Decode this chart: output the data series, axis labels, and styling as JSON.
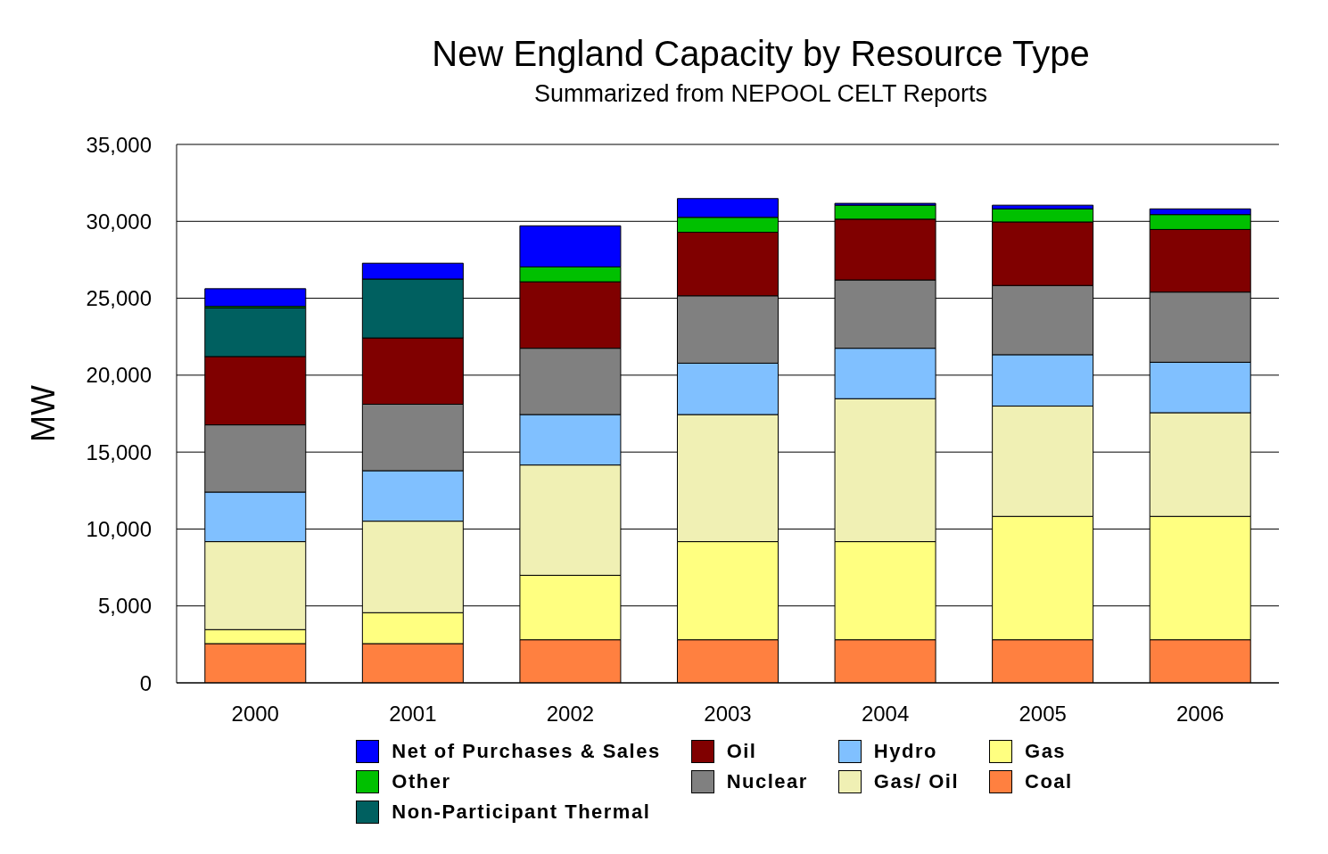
{
  "chart_data": {
    "type": "bar",
    "title": "New England Capacity by Resource Type",
    "subtitle": "Summarized from NEPOOL CELT Reports",
    "ylabel": "MW",
    "categories": [
      "2000",
      "2001",
      "2002",
      "2003",
      "2004",
      "2005",
      "2006"
    ],
    "stacked": true,
    "ylim": [
      0,
      35000
    ],
    "yticks": [
      0,
      {
        "value": 5000,
        "label": "5,000"
      },
      {
        "value": 10000,
        "label": "10,000"
      },
      {
        "value": 15000,
        "label": "15,000"
      },
      {
        "value": 20000,
        "label": "20,000"
      },
      {
        "value": 25000,
        "label": "25,000"
      },
      {
        "value": 30000,
        "label": "30,000"
      },
      {
        "value": 35000,
        "label": "35,000"
      }
    ],
    "grid": "y",
    "legend": "bottom",
    "series": [
      {
        "name": "Coal",
        "color": "#ff8040",
        "values": [
          2550,
          2550,
          2800,
          2800,
          2800,
          2800,
          2800
        ]
      },
      {
        "name": "Gas",
        "color": "#ffff80",
        "values": [
          910,
          2010,
          4190,
          6380,
          6380,
          8020,
          8020
        ]
      },
      {
        "name": "Gas/ Oil",
        "color": "#f0f0b4",
        "values": [
          5720,
          5950,
          7170,
          8260,
          9290,
          7170,
          6740
        ]
      },
      {
        "name": "Hydro",
        "color": "#80c0ff",
        "values": [
          3220,
          3280,
          3280,
          3340,
          3280,
          3340,
          3280
        ]
      },
      {
        "name": "Nuclear",
        "color": "#808080",
        "values": [
          4370,
          4320,
          4310,
          4380,
          4440,
          4500,
          4560
        ]
      },
      {
        "name": "Oil",
        "color": "#800000",
        "values": [
          4440,
          4310,
          4320,
          4130,
          3950,
          4130,
          4070
        ]
      },
      {
        "name": "Non-Participant Thermal",
        "color": "#006060",
        "values": [
          3160,
          3830,
          0,
          0,
          0,
          0,
          0
        ]
      },
      {
        "name": "Other",
        "color": "#00c000",
        "values": [
          100,
          0,
          970,
          970,
          910,
          850,
          970
        ]
      },
      {
        "name": "Net of Purchases & Sales",
        "color": "#0000ff",
        "values": [
          1150,
          1030,
          2670,
          1220,
          120,
          240,
          370
        ]
      }
    ]
  }
}
